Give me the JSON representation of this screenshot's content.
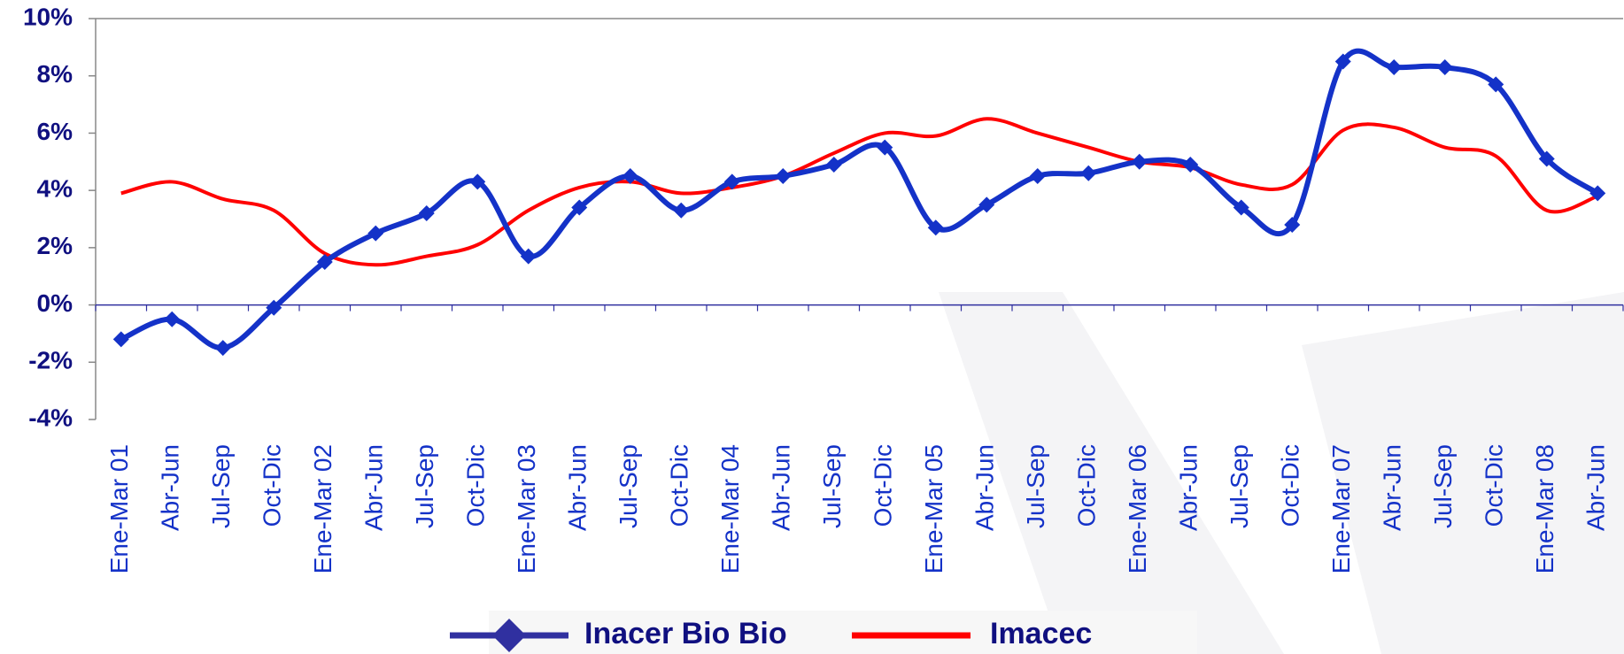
{
  "chart_data": {
    "type": "line",
    "categories": [
      "Ene-Mar 01",
      "Abr-Jun",
      "Jul-Sep",
      "Oct-Dic",
      "Ene-Mar 02",
      "Abr-Jun",
      "Jul-Sep",
      "Oct-Dic",
      "Ene-Mar 03",
      "Abr-Jun",
      "Jul-Sep",
      "Oct-Dic",
      "Ene-Mar 04",
      "Abr-Jun",
      "Jul-Sep",
      "Oct-Dic",
      "Ene-Mar 05",
      "Abr-Jun",
      "Jul-Sep",
      "Oct-Dic",
      "Ene-Mar 06",
      "Abr-Jun",
      "Jul-Sep",
      "Oct-Dic",
      "Ene-Mar 07",
      "Abr-Jun",
      "Jul-Sep",
      "Oct-Dic",
      "Ene-Mar 08",
      "Abr-Jun"
    ],
    "series": [
      {
        "name": "Inacer Bio Bio",
        "color": "#1432c8",
        "marker": "diamond",
        "values": [
          -1.2,
          -0.5,
          -1.5,
          -0.1,
          1.5,
          2.5,
          3.2,
          4.3,
          1.7,
          3.4,
          4.5,
          3.3,
          4.3,
          4.5,
          4.9,
          5.5,
          2.7,
          3.5,
          4.5,
          4.6,
          5.0,
          4.9,
          3.4,
          2.8,
          8.5,
          8.3,
          8.3,
          7.7,
          5.1,
          3.9
        ]
      },
      {
        "name": "Imacec",
        "color": "#ff0000",
        "values": [
          3.9,
          4.3,
          3.7,
          3.3,
          1.8,
          1.4,
          1.7,
          2.1,
          3.3,
          4.1,
          4.3,
          3.9,
          4.1,
          4.5,
          5.3,
          6.0,
          5.9,
          6.5,
          6.0,
          5.5,
          5.0,
          4.8,
          4.2,
          4.2,
          6.1,
          6.2,
          5.5,
          5.2,
          3.3,
          3.8
        ]
      }
    ],
    "ylim": [
      -4,
      10
    ],
    "yticks": [
      {
        "value": -4,
        "label": "-4%"
      },
      {
        "value": -2,
        "label": "-2%"
      },
      {
        "value": 0,
        "label": "0%"
      },
      {
        "value": 2,
        "label": "2%"
      },
      {
        "value": 4,
        "label": "4%"
      },
      {
        "value": 6,
        "label": "6%"
      },
      {
        "value": 8,
        "label": "8%"
      },
      {
        "value": 10,
        "label": "10%"
      }
    ],
    "legend": "bottom"
  }
}
